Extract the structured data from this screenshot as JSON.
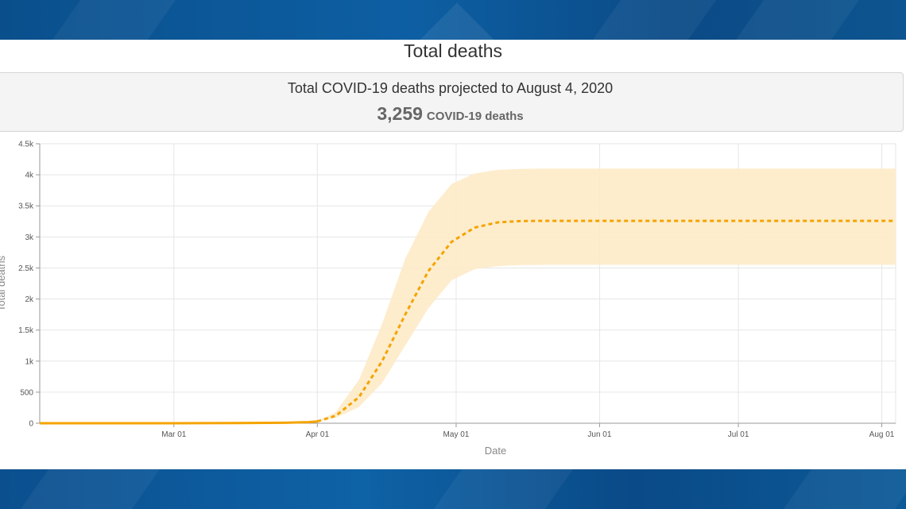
{
  "header": {
    "title": "Total deaths"
  },
  "summary": {
    "projection_text": "Total COVID-19 deaths projected to August 4, 2020",
    "value": "3,259",
    "unit": "COVID-19 deaths"
  },
  "colors": {
    "band_blue": "#0d5fa3",
    "series": "#f5a300",
    "uncertainty": "#fdebc8"
  },
  "chart_data": {
    "type": "line",
    "xlabel": "Date",
    "ylabel": "Total deaths",
    "x_tick_labels": [
      "Mar 01",
      "Apr 01",
      "May 01",
      "Jun 01",
      "Jul 01",
      "Aug 01"
    ],
    "y_tick_labels": [
      "0",
      "500",
      "1k",
      "1.5k",
      "2k",
      "2.5k",
      "3k",
      "3.5k",
      "4k",
      "4.5k"
    ],
    "ylim": [
      0,
      4500
    ],
    "xlim": [
      "2020-02-01",
      "2020-08-04"
    ],
    "grid": true,
    "series": [
      {
        "style": "solid",
        "points": [
          [
            "2020-02-01",
            0
          ],
          [
            "2020-03-01",
            0
          ],
          [
            "2020-03-15",
            2
          ],
          [
            "2020-03-25",
            8
          ],
          [
            "2020-03-30",
            18
          ],
          [
            "2020-04-01",
            30
          ]
        ]
      },
      {
        "style": "dashed",
        "points": [
          [
            "2020-04-01",
            30
          ],
          [
            "2020-04-05",
            120
          ],
          [
            "2020-04-10",
            420
          ],
          [
            "2020-04-15",
            1000
          ],
          [
            "2020-04-20",
            1750
          ],
          [
            "2020-04-25",
            2450
          ],
          [
            "2020-04-30",
            2920
          ],
          [
            "2020-05-05",
            3150
          ],
          [
            "2020-05-10",
            3235
          ],
          [
            "2020-05-15",
            3255
          ],
          [
            "2020-05-20",
            3259
          ],
          [
            "2020-06-01",
            3259
          ],
          [
            "2020-07-01",
            3259
          ],
          [
            "2020-08-04",
            3259
          ]
        ]
      }
    ],
    "band": {
      "points": [
        [
          "2020-04-01",
          30,
          30
        ],
        [
          "2020-04-05",
          90,
          180
        ],
        [
          "2020-04-10",
          260,
          700
        ],
        [
          "2020-04-15",
          650,
          1600
        ],
        [
          "2020-04-20",
          1250,
          2650
        ],
        [
          "2020-04-25",
          1850,
          3400
        ],
        [
          "2020-04-30",
          2300,
          3850
        ],
        [
          "2020-05-05",
          2480,
          4020
        ],
        [
          "2020-05-10",
          2530,
          4080
        ],
        [
          "2020-05-15",
          2545,
          4095
        ],
        [
          "2020-05-20",
          2550,
          4100
        ],
        [
          "2020-06-01",
          2550,
          4100
        ],
        [
          "2020-07-01",
          2550,
          4100
        ],
        [
          "2020-08-04",
          2550,
          4100
        ]
      ]
    }
  }
}
